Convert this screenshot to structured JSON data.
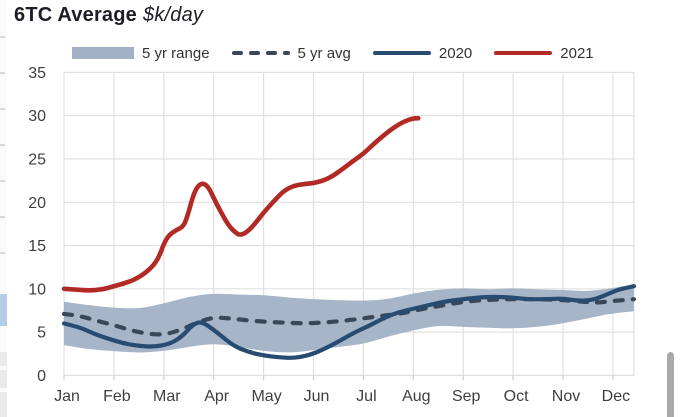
{
  "title": {
    "main": "6TC Average",
    "units": "$k/day"
  },
  "legend": [
    {
      "label": "5 yr range",
      "type": "band",
      "color": "#a2b1c6"
    },
    {
      "label": "5 yr avg",
      "type": "dashed",
      "color": "#3a4759"
    },
    {
      "label": "2020",
      "type": "line",
      "color": "#274b71"
    },
    {
      "label": "2021",
      "type": "line",
      "color": "#b22a25"
    }
  ],
  "chart_data": {
    "type": "line",
    "title": "6TC Average",
    "ylabel": "$k/day",
    "grid": true,
    "x_axis": {
      "categories": [
        "Jan",
        "Feb",
        "Mar",
        "Apr",
        "May",
        "Jun",
        "Jul",
        "Aug",
        "Sep",
        "Oct",
        "Nov",
        "Dec"
      ],
      "unit_note": "x values below are in month units, 0 = start of Jan"
    },
    "y_axis": {
      "min": 0,
      "max": 35,
      "tick_step": 5,
      "ticks": [
        0,
        5,
        10,
        15,
        20,
        25,
        30,
        35
      ]
    },
    "colors": {
      "band": "#a2b1c6",
      "avg": "#3a4759",
      "y2020": "#274b71",
      "y2021": "#b22a25",
      "gridline": "#e0e0e0",
      "tick_text": "#3f3f3f"
    },
    "series": [
      {
        "name": "5 yr range",
        "kind": "band",
        "x": [
          0,
          0.5,
          1,
          1.5,
          2,
          2.5,
          3,
          3.5,
          4,
          4.5,
          5,
          5.5,
          6,
          6.5,
          7,
          7.5,
          8,
          8.5,
          9,
          9.5,
          10,
          10.5,
          11,
          11.42
        ],
        "upper": [
          8.5,
          8.1,
          7.8,
          7.7,
          8.3,
          9.1,
          9.5,
          9.3,
          9.3,
          9.0,
          8.8,
          8.7,
          8.6,
          8.8,
          9.5,
          9.9,
          10.1,
          9.9,
          10.1,
          9.9,
          9.9,
          9.7,
          10.1,
          10.5
        ],
        "lower": [
          3.5,
          3.0,
          2.8,
          2.6,
          2.8,
          3.3,
          3.7,
          3.3,
          2.8,
          2.6,
          2.9,
          3.3,
          3.6,
          4.5,
          5.2,
          5.8,
          5.6,
          5.5,
          5.4,
          5.6,
          6.0,
          6.6,
          7.2,
          7.4
        ]
      },
      {
        "name": "5 yr avg",
        "kind": "dashed-line",
        "points": [
          [
            0,
            7.1
          ],
          [
            0.3,
            6.9
          ],
          [
            0.6,
            6.4
          ],
          [
            1,
            5.8
          ],
          [
            1.4,
            5.1
          ],
          [
            1.8,
            4.7
          ],
          [
            2.1,
            4.8
          ],
          [
            2.4,
            5.4
          ],
          [
            2.7,
            6.2
          ],
          [
            3,
            6.7
          ],
          [
            3.3,
            6.6
          ],
          [
            3.6,
            6.4
          ],
          [
            4,
            6.2
          ],
          [
            4.4,
            6.1
          ],
          [
            4.8,
            6.0
          ],
          [
            5.2,
            6.1
          ],
          [
            5.6,
            6.3
          ],
          [
            6,
            6.6
          ],
          [
            6.4,
            6.9
          ],
          [
            6.8,
            7.2
          ],
          [
            7.2,
            7.7
          ],
          [
            7.6,
            8.1
          ],
          [
            8,
            8.5
          ],
          [
            8.4,
            8.7
          ],
          [
            8.8,
            8.8
          ],
          [
            9.2,
            8.8
          ],
          [
            9.6,
            8.8
          ],
          [
            10,
            8.7
          ],
          [
            10.4,
            8.5
          ],
          [
            10.7,
            8.4
          ],
          [
            11,
            8.6
          ],
          [
            11.42,
            8.8
          ]
        ]
      },
      {
        "name": "2020",
        "kind": "line",
        "points": [
          [
            0,
            6.0
          ],
          [
            0.3,
            5.6
          ],
          [
            0.6,
            4.8
          ],
          [
            0.9,
            4.2
          ],
          [
            1.2,
            3.7
          ],
          [
            1.5,
            3.4
          ],
          [
            1.8,
            3.3
          ],
          [
            2.1,
            3.6
          ],
          [
            2.35,
            4.4
          ],
          [
            2.55,
            5.7
          ],
          [
            2.7,
            6.2
          ],
          [
            2.85,
            5.9
          ],
          [
            3.1,
            4.8
          ],
          [
            3.4,
            3.4
          ],
          [
            3.7,
            2.7
          ],
          [
            4,
            2.3
          ],
          [
            4.3,
            2.1
          ],
          [
            4.6,
            2.0
          ],
          [
            4.9,
            2.3
          ],
          [
            5.2,
            3.0
          ],
          [
            5.5,
            3.9
          ],
          [
            5.8,
            4.9
          ],
          [
            6.1,
            5.7
          ],
          [
            6.4,
            6.6
          ],
          [
            6.7,
            7.3
          ],
          [
            7,
            7.7
          ],
          [
            7.3,
            8.1
          ],
          [
            7.6,
            8.5
          ],
          [
            8,
            8.8
          ],
          [
            8.3,
            9.0
          ],
          [
            8.6,
            9.1
          ],
          [
            9,
            9.0
          ],
          [
            9.3,
            8.8
          ],
          [
            9.7,
            8.8
          ],
          [
            10,
            8.9
          ],
          [
            10.3,
            8.6
          ],
          [
            10.6,
            8.7
          ],
          [
            10.9,
            9.4
          ],
          [
            11.1,
            9.9
          ],
          [
            11.42,
            10.3
          ]
        ]
      },
      {
        "name": "2021",
        "kind": "line",
        "points": [
          [
            0,
            10.0
          ],
          [
            0.25,
            9.9
          ],
          [
            0.5,
            9.8
          ],
          [
            0.75,
            9.9
          ],
          [
            1,
            10.3
          ],
          [
            1.25,
            10.7
          ],
          [
            1.5,
            11.3
          ],
          [
            1.75,
            12.4
          ],
          [
            1.9,
            13.6
          ],
          [
            2,
            15.2
          ],
          [
            2.1,
            16.2
          ],
          [
            2.25,
            16.8
          ],
          [
            2.4,
            17.2
          ],
          [
            2.5,
            18.9
          ],
          [
            2.6,
            21.0
          ],
          [
            2.7,
            22.0
          ],
          [
            2.8,
            22.2
          ],
          [
            2.9,
            21.7
          ],
          [
            3,
            20.5
          ],
          [
            3.15,
            18.8
          ],
          [
            3.3,
            17.3
          ],
          [
            3.45,
            16.4
          ],
          [
            3.55,
            16.2
          ],
          [
            3.7,
            16.7
          ],
          [
            3.85,
            17.7
          ],
          [
            4,
            18.8
          ],
          [
            4.2,
            20.1
          ],
          [
            4.4,
            21.3
          ],
          [
            4.6,
            21.9
          ],
          [
            4.8,
            22.1
          ],
          [
            5,
            22.2
          ],
          [
            5.3,
            22.7
          ],
          [
            5.6,
            23.9
          ],
          [
            5.8,
            24.8
          ],
          [
            6,
            25.6
          ],
          [
            6.2,
            26.7
          ],
          [
            6.4,
            27.7
          ],
          [
            6.6,
            28.6
          ],
          [
            6.8,
            29.3
          ],
          [
            7,
            29.7
          ],
          [
            7.1,
            29.7
          ]
        ]
      }
    ]
  },
  "chrome": {
    "left_strip_highlight_color": "#b5cce9",
    "scrollbar_color": "#a9a9a9"
  }
}
